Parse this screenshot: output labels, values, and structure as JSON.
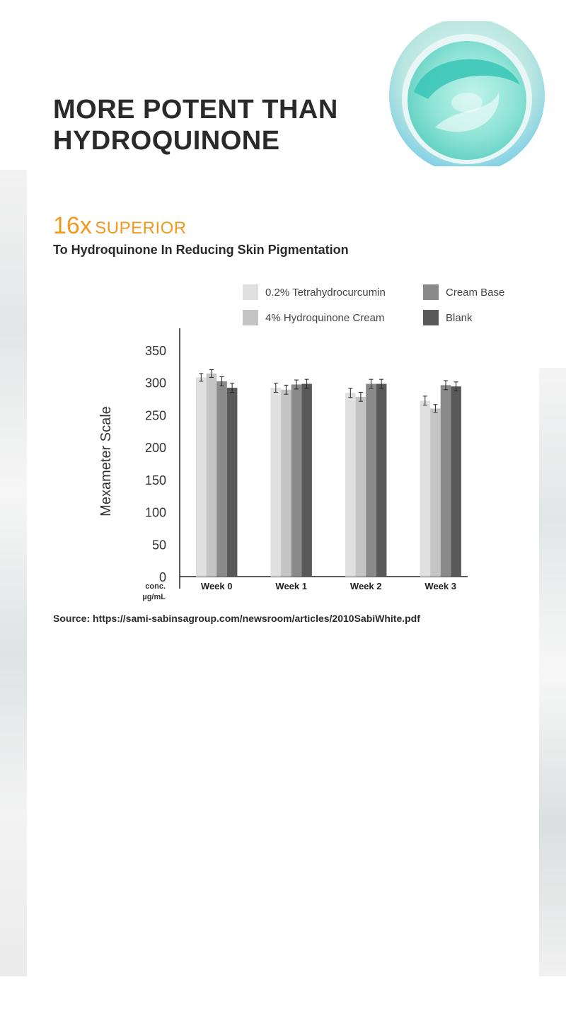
{
  "headline": {
    "line1": "MORE POTENT THAN",
    "line2": "HYDROQUINONE"
  },
  "superior": {
    "multiplier": "16x",
    "word": "SUPERIOR"
  },
  "subhead": "To Hydroquinone In Reducing Skin Pigmentation",
  "source": "Source: https://sami-sabinsagroup.com/newsroom/articles/2010SabiWhite.pdf",
  "colors": {
    "accent": "#f29a1f",
    "text": "#2a2a2a",
    "jar_cream": "#8fe3d6",
    "jar_teal": "#3cc7b8"
  },
  "chart_data": {
    "type": "bar",
    "ylabel": "Mexameter Scale",
    "xlabel": "",
    "x_unit_label": "conc.\nµg/mL",
    "ylim": [
      0,
      350
    ],
    "yticks": [
      0,
      50,
      100,
      150,
      200,
      250,
      300,
      350
    ],
    "grid": false,
    "legend_position": "top-right",
    "categories": [
      "Week 0",
      "Week 1",
      "Week 2",
      "Week 3"
    ],
    "series": [
      {
        "name": "0.2% Tetrahydrocurcumin",
        "color": "#e0e0e0",
        "values": [
          308,
          292,
          284,
          272
        ],
        "errors": [
          6,
          7,
          7,
          7
        ]
      },
      {
        "name": "4% Hydroquinone Cream",
        "color": "#c4c4c4",
        "values": [
          314,
          289,
          278,
          260
        ],
        "errors": [
          6,
          7,
          7,
          6
        ]
      },
      {
        "name": "Cream Base",
        "color": "#8a8a8a",
        "values": [
          302,
          297,
          298,
          296
        ],
        "errors": [
          7,
          7,
          7,
          7
        ]
      },
      {
        "name": "Blank",
        "color": "#595959",
        "values": [
          292,
          298,
          298,
          294
        ],
        "errors": [
          7,
          7,
          7,
          7
        ]
      }
    ]
  }
}
